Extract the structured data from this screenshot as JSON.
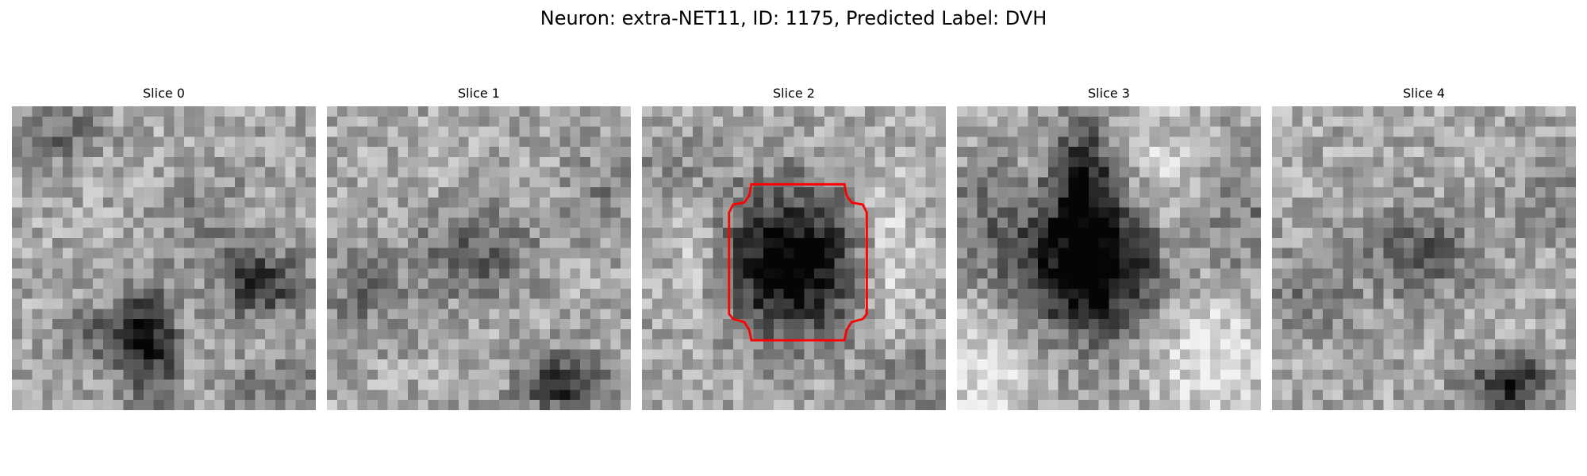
{
  "figure": {
    "title": "Neuron: extra-NET11, ID: 1175, Predicted Label: DVH"
  },
  "panels": [
    {
      "title": "Slice 0",
      "pattern": "scattered-dark-blobs"
    },
    {
      "title": "Slice 1",
      "pattern": "faint-central-blob"
    },
    {
      "title": "Slice 2",
      "pattern": "dark-central-cell-with-outline"
    },
    {
      "title": "Slice 3",
      "pattern": "large-dark-central-cell"
    },
    {
      "title": "Slice 4",
      "pattern": "faint-central-blob"
    }
  ],
  "colors": {
    "outline": "#ff0000",
    "colormap": "grayscale"
  }
}
